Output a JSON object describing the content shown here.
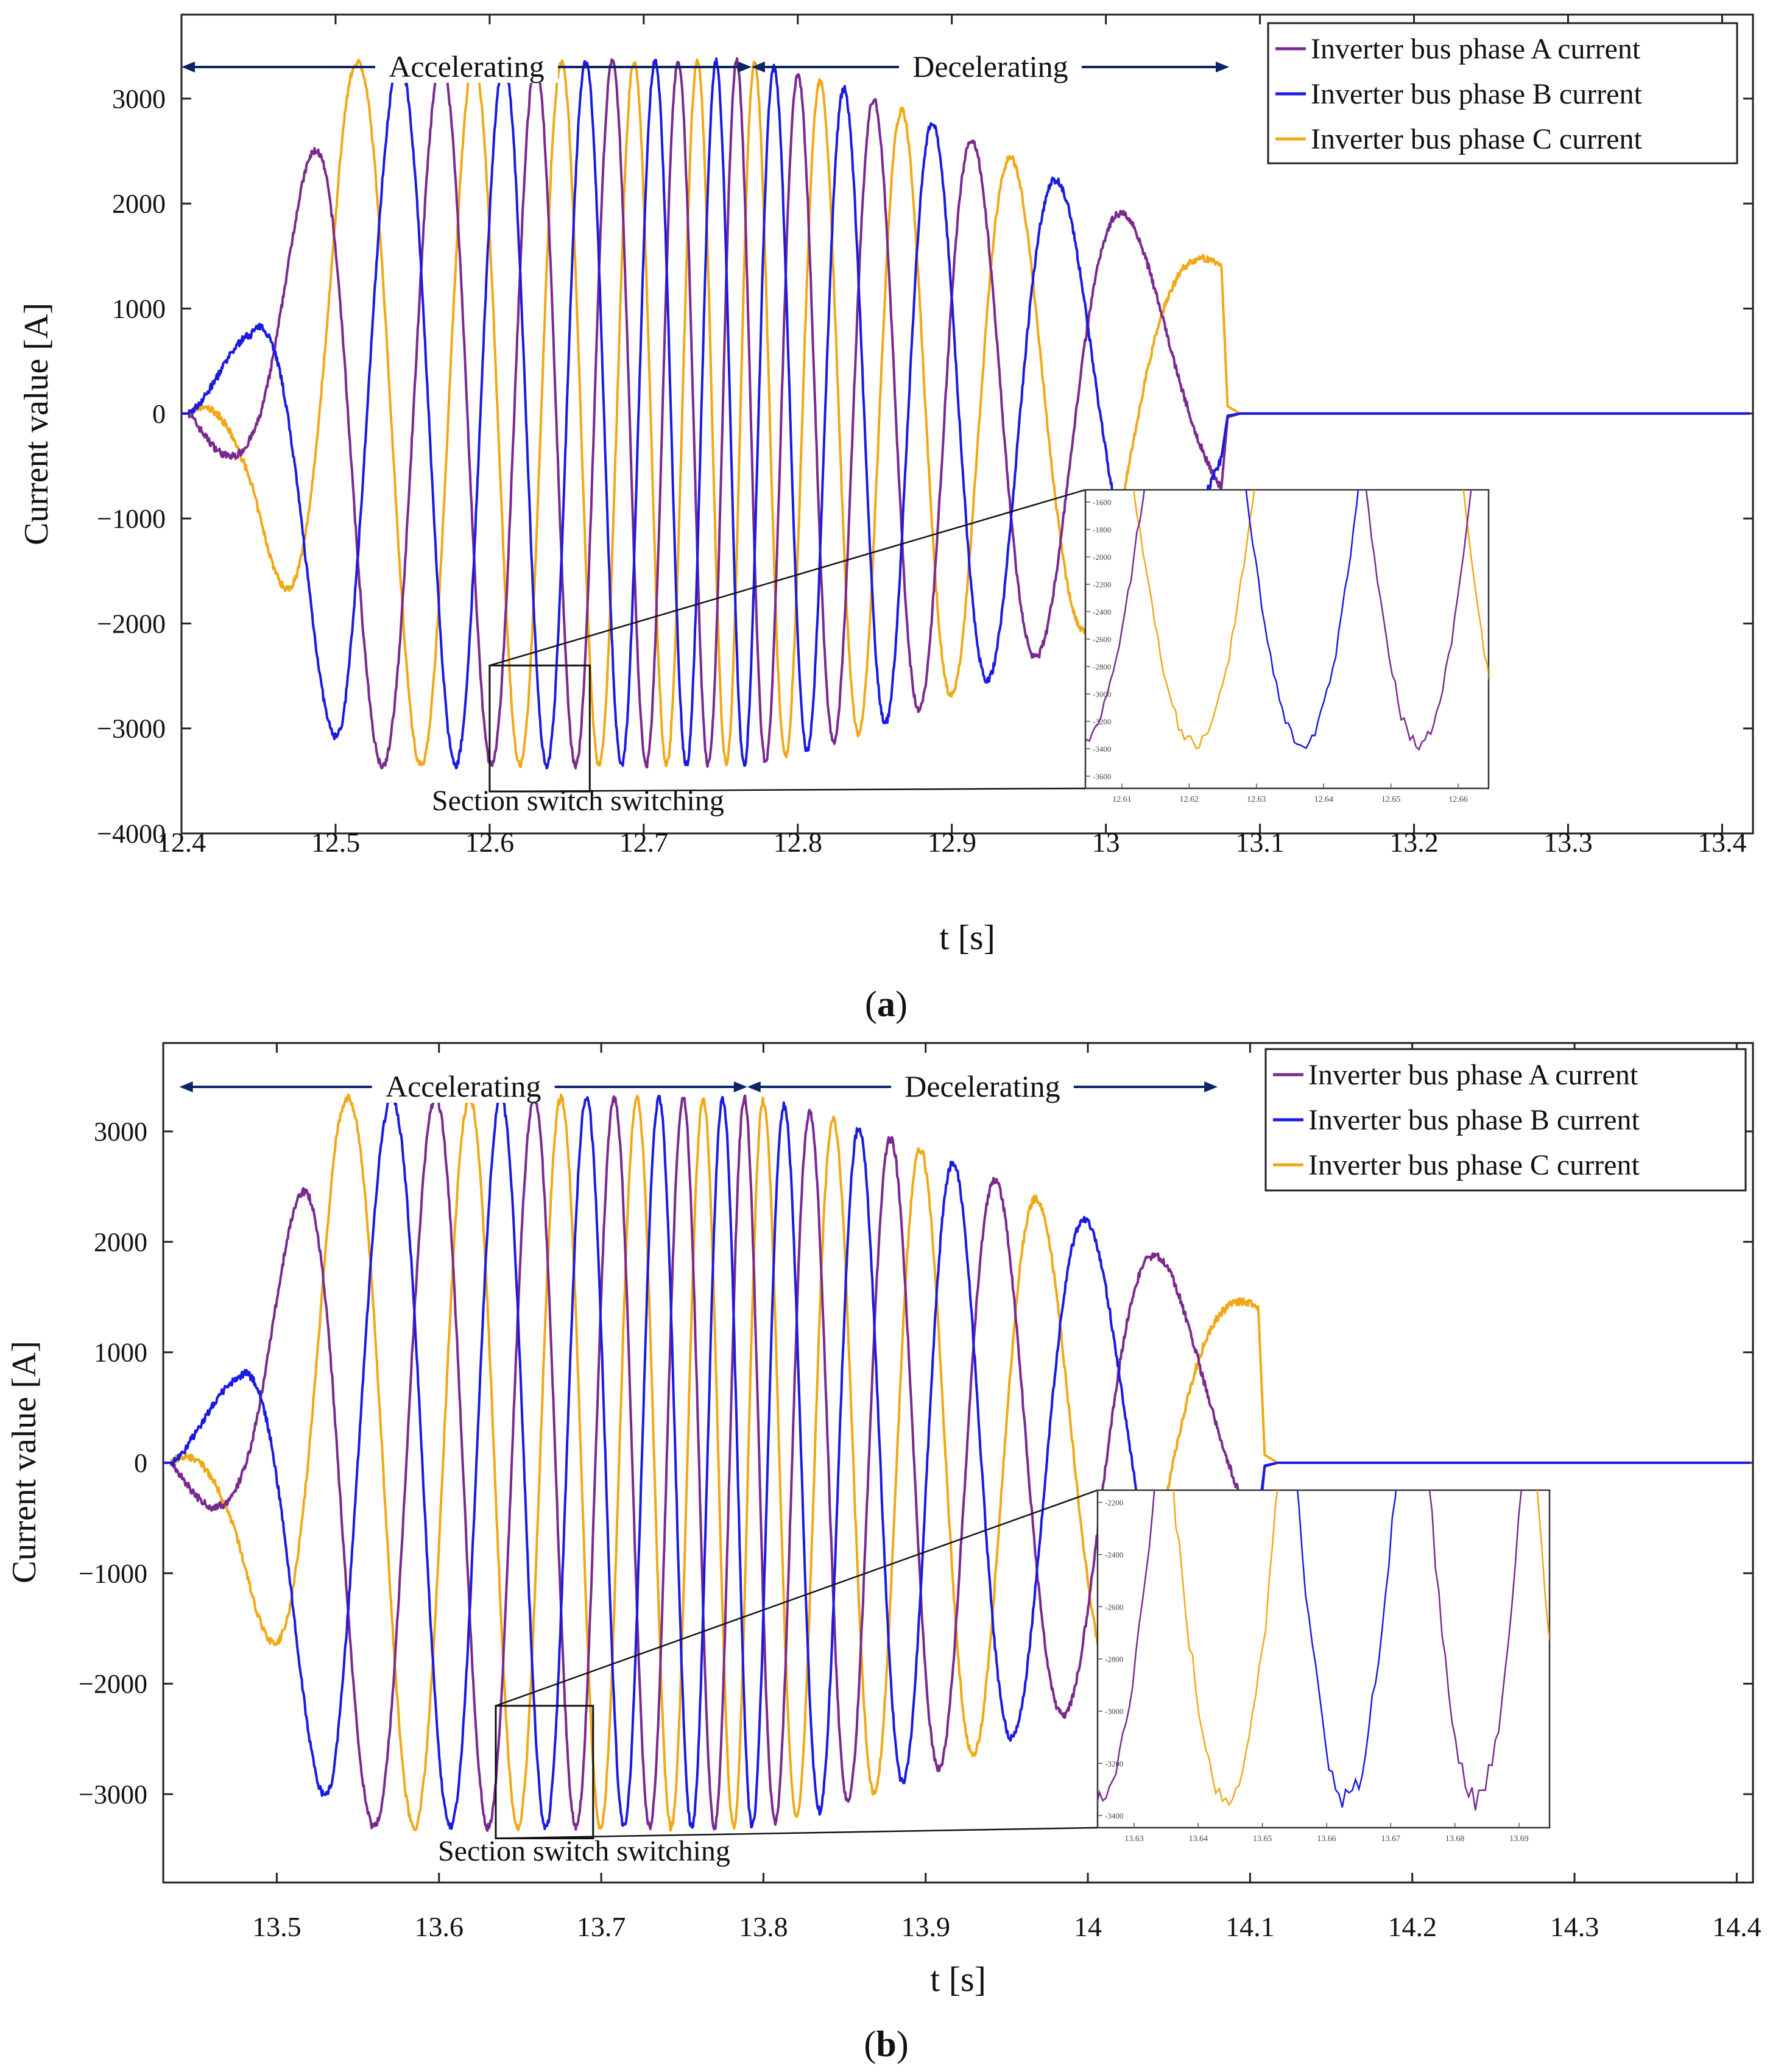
{
  "colors": {
    "phase_a": "#7a2a8e",
    "phase_b": "#1a1ae0",
    "phase_c": "#f0a818",
    "arrow": "#0a2466",
    "axis": "#222222"
  },
  "chart_data": [
    {
      "type": "line",
      "caption": "(a)",
      "caption_letter": "a",
      "ylabel": "Current value [A]",
      "xlabel": "t [s]",
      "xlim": [
        12.4,
        13.42
      ],
      "ylim": [
        -4000,
        3800
      ],
      "xticks": [
        12.4,
        12.5,
        12.6,
        12.7,
        12.8,
        12.9,
        13,
        13.1,
        13.2,
        13.3,
        13.4
      ],
      "xtick_labels": [
        "12.4",
        "12.5",
        "12.6",
        "12.7",
        "12.8",
        "12.9",
        "13",
        "13.1",
        "13.2",
        "13.3",
        "13.4"
      ],
      "yticks": [
        -4000,
        -3000,
        -2000,
        -1000,
        0,
        1000,
        2000,
        3000
      ],
      "ytick_labels": [
        "−4000",
        "−3000",
        "−2000",
        "−1000",
        "0",
        "1000",
        "2000",
        "3000"
      ],
      "legend": [
        "Inverter bus phase A current",
        "Inverter bus phase B current",
        "Inverter bus phase C current"
      ],
      "legend_position": "top-right",
      "annotations": {
        "accelerating": "Accelerating",
        "decelerating": "Decelerating",
        "accel_range": [
          12.4,
          12.77
        ],
        "decel_range": [
          12.77,
          13.08
        ],
        "switching": "Section switch switching",
        "zoom_box_x": [
          12.6,
          12.665
        ],
        "zoom_box_y": [
          -3600,
          -2400
        ]
      },
      "waveform": {
        "t_start": 12.405,
        "t_ramp_end": 12.445,
        "t_switch": 12.765,
        "t_end": 13.075,
        "amp_peak": 3350,
        "amp_end": 1400,
        "freq_start": 5,
        "freq_mid": 28,
        "freq_end": 3.5
      },
      "inset": {
        "xticks": [
          "12.61",
          "12.62",
          "12.63",
          "12.64",
          "12.65",
          "12.66"
        ],
        "yticks": [
          "-1600",
          "-1800",
          "-2000",
          "-2200",
          "-2400",
          "-2600",
          "-2800",
          "-3000",
          "-3200",
          "-3400",
          "-3600"
        ],
        "xlim": [
          12.602,
          12.667
        ],
        "ylim": [
          -3650,
          -1600
        ]
      }
    },
    {
      "type": "line",
      "caption": "(b)",
      "caption_letter": "b",
      "ylabel": "Current value [A]",
      "xlabel": "t [s]",
      "xlim": [
        13.43,
        14.41
      ],
      "ylim": [
        -3800,
        3800
      ],
      "xticks": [
        13.5,
        13.6,
        13.7,
        13.8,
        13.9,
        14,
        14.1,
        14.2,
        14.3,
        14.4
      ],
      "xtick_labels": [
        "13.5",
        "13.6",
        "13.7",
        "13.8",
        "13.9",
        "14",
        "14.1",
        "14.2",
        "14.3",
        "14.4"
      ],
      "yticks": [
        -3000,
        -2000,
        -1000,
        0,
        1000,
        2000,
        3000
      ],
      "ytick_labels": [
        "−3000",
        "−2000",
        "−1000",
        "0",
        "1000",
        "2000",
        "3000"
      ],
      "legend": [
        "Inverter bus phase A current",
        "Inverter bus phase B current",
        "Inverter bus phase C current"
      ],
      "legend_position": "top-right",
      "annotations": {
        "accelerating": "Accelerating",
        "decelerating": "Decelerating",
        "accel_range": [
          13.44,
          13.79
        ],
        "decel_range": [
          13.79,
          14.08
        ],
        "switching": "Section switch switching",
        "zoom_box_x": [
          13.635,
          13.695
        ],
        "zoom_box_y": [
          -3400,
          -2200
        ]
      },
      "waveform": {
        "t_start": 13.435,
        "t_ramp_end": 13.475,
        "t_switch": 13.79,
        "t_end": 14.105,
        "amp_peak": 3300,
        "amp_end": 1400,
        "freq_start": 5,
        "freq_mid": 28,
        "freq_end": 3.5
      },
      "inset": {
        "xticks": [
          "13.63",
          "13.64",
          "13.65",
          "13.66",
          "13.67",
          "13.68",
          "13.69"
        ],
        "yticks": [
          "-2200",
          "-2400",
          "-2600",
          "-2800",
          "-3000",
          "-3200",
          "-3400"
        ],
        "xlim": [
          13.63,
          13.695
        ],
        "ylim": [
          -3400,
          -2200
        ]
      }
    }
  ]
}
